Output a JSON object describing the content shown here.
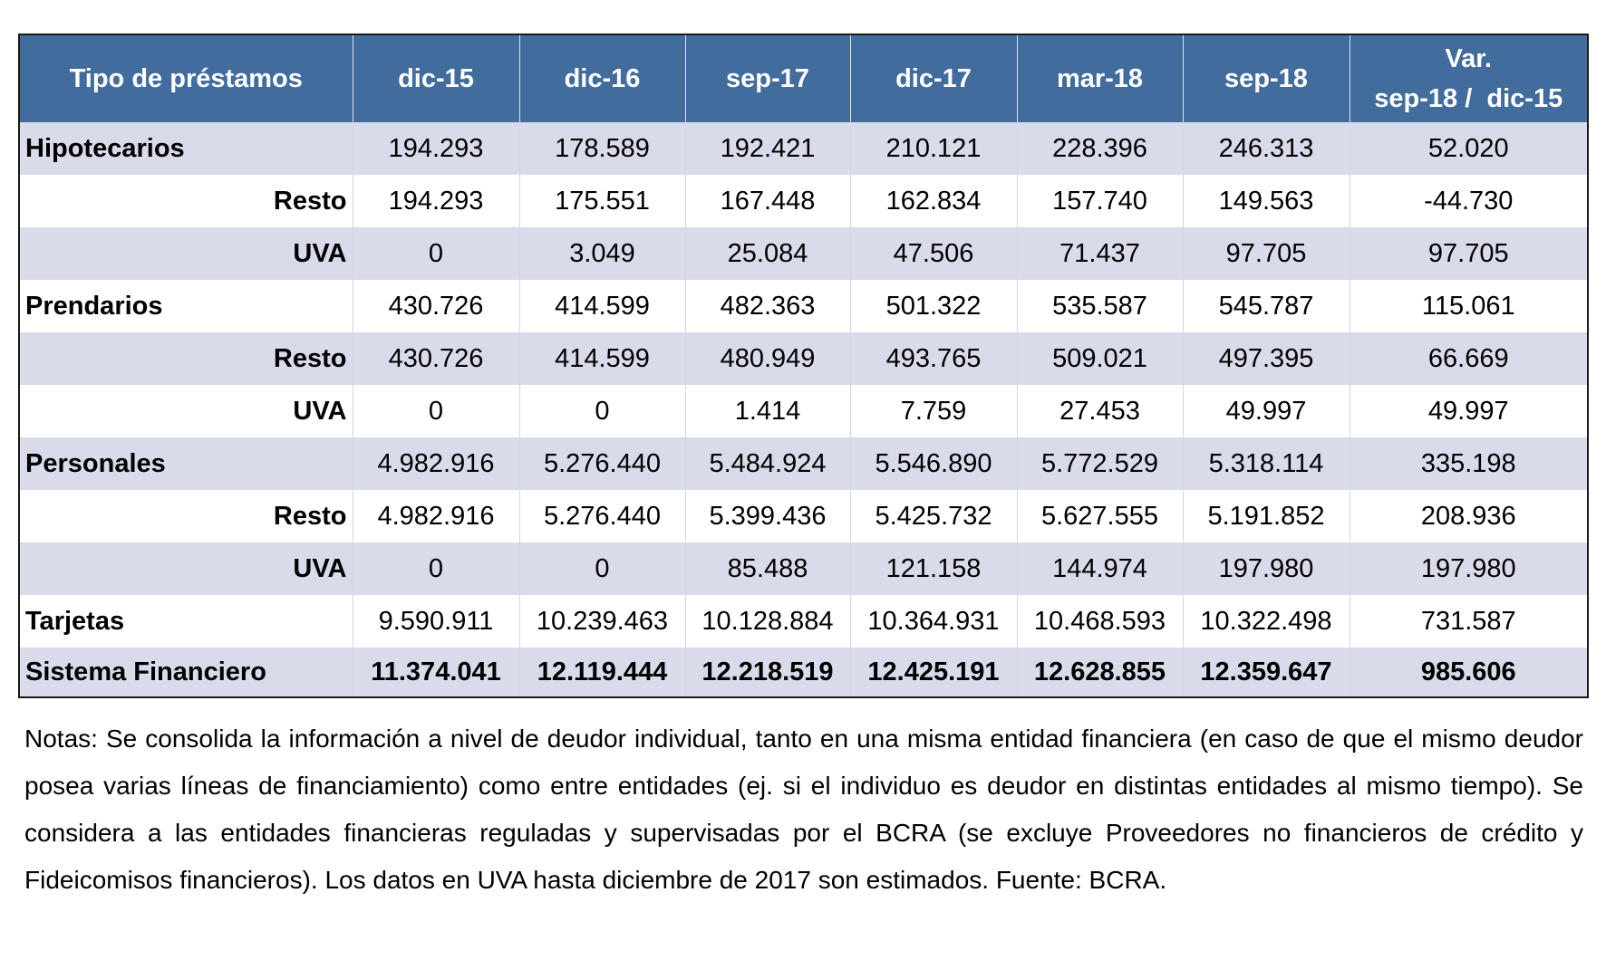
{
  "table": {
    "headers": [
      "Tipo de préstamos",
      "dic-15",
      "dic-16",
      "sep-17",
      "dic-17",
      "mar-18",
      "sep-18"
    ],
    "var_header": [
      "Var.",
      "sep-18 /  dic-15"
    ],
    "rows": [
      {
        "label": "Hipotecarios",
        "kind": "main",
        "values": [
          "194.293",
          "178.589",
          "192.421",
          "210.121",
          "228.396",
          "246.313",
          "52.020"
        ]
      },
      {
        "label": "Resto",
        "kind": "sub",
        "values": [
          "194.293",
          "175.551",
          "167.448",
          "162.834",
          "157.740",
          "149.563",
          "-44.730"
        ]
      },
      {
        "label": "UVA",
        "kind": "sub",
        "values": [
          "0",
          "3.049",
          "25.084",
          "47.506",
          "71.437",
          "97.705",
          "97.705"
        ]
      },
      {
        "label": "Prendarios",
        "kind": "main",
        "values": [
          "430.726",
          "414.599",
          "482.363",
          "501.322",
          "535.587",
          "545.787",
          "115.061"
        ]
      },
      {
        "label": "Resto",
        "kind": "sub",
        "values": [
          "430.726",
          "414.599",
          "480.949",
          "493.765",
          "509.021",
          "497.395",
          "66.669"
        ]
      },
      {
        "label": "UVA",
        "kind": "sub",
        "values": [
          "0",
          "0",
          "1.414",
          "7.759",
          "27.453",
          "49.997",
          "49.997"
        ]
      },
      {
        "label": "Personales",
        "kind": "main",
        "values": [
          "4.982.916",
          "5.276.440",
          "5.484.924",
          "5.546.890",
          "5.772.529",
          "5.318.114",
          "335.198"
        ]
      },
      {
        "label": "Resto",
        "kind": "sub",
        "values": [
          "4.982.916",
          "5.276.440",
          "5.399.436",
          "5.425.732",
          "5.627.555",
          "5.191.852",
          "208.936"
        ]
      },
      {
        "label": "UVA",
        "kind": "sub",
        "values": [
          "0",
          "0",
          "85.488",
          "121.158",
          "144.974",
          "197.980",
          "197.980"
        ]
      },
      {
        "label": "Tarjetas",
        "kind": "main",
        "values": [
          "9.590.911",
          "10.239.463",
          "10.128.884",
          "10.364.931",
          "10.468.593",
          "10.322.498",
          "731.587"
        ]
      },
      {
        "label": "Sistema Financiero",
        "kind": "total",
        "values": [
          "11.374.041",
          "12.119.444",
          "12.218.519",
          "12.425.191",
          "12.628.855",
          "12.359.647",
          "985.606"
        ]
      }
    ]
  },
  "notes": "Notas: Se consolida la información a nivel de deudor individual, tanto en una misma entidad financiera (en caso de que el mismo deudor posea varias líneas de financiamiento) como entre entidades (ej. si el individuo es deudor en distintas entidades al mismo tiempo). Se considera a las entidades financieras reguladas y supervisadas por el BCRA (se excluye Proveedores no financieros de crédito y Fideicomisos financieros). Los datos en UVA hasta diciembre de 2017 son estimados. Fuente: BCRA.",
  "colors": {
    "header_bg": "#416c9b",
    "band_bg": "#d9dbeb",
    "header_text": "#ffffff"
  }
}
